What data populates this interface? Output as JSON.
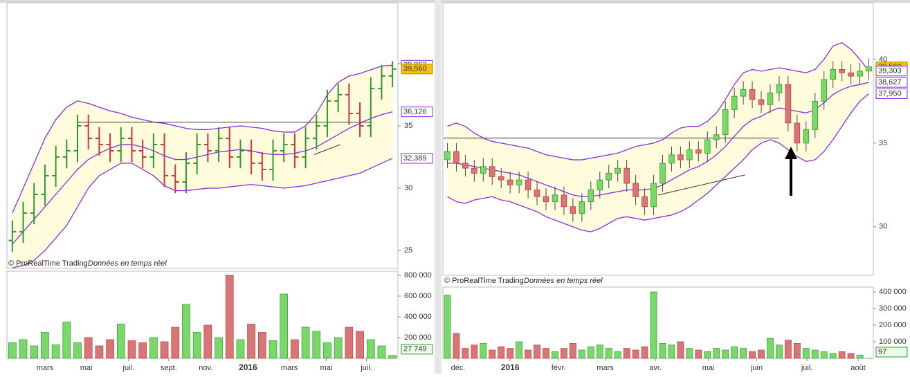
{
  "chart_data": [
    {
      "type": "ohlc",
      "xlim": [
        -0.5,
        35.5
      ],
      "xticks": [
        {
          "value": 3,
          "label": "mars"
        },
        {
          "value": 6.8,
          "label": "mai"
        },
        {
          "value": 10.7,
          "label": "juil."
        },
        {
          "value": 14.4,
          "label": "sept."
        },
        {
          "value": 17.8,
          "label": "nov."
        },
        {
          "value": 21.7,
          "label": "2016",
          "bold": true
        },
        {
          "value": 25.5,
          "label": "mars"
        },
        {
          "value": 28.9,
          "label": "mai"
        },
        {
          "value": 32.6,
          "label": "juil."
        }
      ],
      "ylim": [
        23.56,
        45.1
      ],
      "yticks": [
        25,
        30,
        35,
        40
      ],
      "open": [
        25.8,
        26.5,
        28,
        29.5,
        31,
        32.5,
        33,
        35,
        34,
        33.5,
        33,
        34,
        33,
        32.5,
        33.5,
        31,
        30.5,
        32,
        33.5,
        33,
        34,
        32.5,
        33,
        32,
        31.5,
        33,
        33.5,
        32.5,
        34,
        35,
        37,
        37.5,
        36,
        35,
        38,
        39
      ],
      "high": [
        27.4,
        28.9,
        30.4,
        31.9,
        33.4,
        33.9,
        35.9,
        35.9,
        34.9,
        34.4,
        34.9,
        34.9,
        33.9,
        34.4,
        34.4,
        31.9,
        32.9,
        34.4,
        34.4,
        34.9,
        34.9,
        33.9,
        33.9,
        32.9,
        33.9,
        34.4,
        34.4,
        34.9,
        35.9,
        37.9,
        38.4,
        38.4,
        36.9,
        38.9,
        39.9,
        40.2
      ],
      "low": [
        24.9,
        25.6,
        27.1,
        28.6,
        30.1,
        31.6,
        32.1,
        33.1,
        32.6,
        32.1,
        32.1,
        32.1,
        31.6,
        31.6,
        30.1,
        29.6,
        29.6,
        31.1,
        32.1,
        32.1,
        31.6,
        31.6,
        31.1,
        30.6,
        30.6,
        32.1,
        31.6,
        31.6,
        33.1,
        34.1,
        36.1,
        35.1,
        34.1,
        34.1,
        37.1,
        38.1
      ],
      "close": [
        26.5,
        28,
        29.5,
        31,
        32.5,
        33,
        35,
        34,
        33.5,
        33,
        34,
        33,
        32.5,
        33.5,
        31,
        30.5,
        32,
        33.5,
        33,
        34,
        32.5,
        33,
        32,
        31.5,
        33,
        33.5,
        32.5,
        34,
        35,
        37,
        37.5,
        36,
        35,
        38,
        39,
        39.56
      ],
      "bands": {
        "upper": [
          28,
          30,
          32,
          34,
          35.5,
          36.5,
          37,
          36.8,
          36.5,
          36.2,
          36,
          35.7,
          35.5,
          35.3,
          35.2,
          35,
          34.8,
          34.7,
          34.7,
          34.8,
          34.9,
          35,
          34.9,
          34.8,
          34.6,
          34.5,
          34.5,
          35,
          36,
          37.5,
          38.5,
          39,
          39.2,
          39.5,
          39.8,
          39.863
        ],
        "middle": [
          25.5,
          26.5,
          27.5,
          28.5,
          29.5,
          30.5,
          31.5,
          32.3,
          32.8,
          33.2,
          33.5,
          33.5,
          33.3,
          33.0,
          32.6,
          32.3,
          32.3,
          32.5,
          32.7,
          32.9,
          33,
          33.1,
          33.0,
          32.8,
          32.7,
          32.7,
          32.8,
          33,
          33.3,
          33.8,
          34.3,
          34.8,
          35.2,
          35.6,
          35.9,
          36.126
        ],
        "lower": [
          23.6,
          23.8,
          24.2,
          25,
          26,
          27,
          28.5,
          30,
          31,
          31.5,
          32,
          32,
          31.5,
          31,
          30.2,
          29.8,
          29.8,
          29.9,
          30,
          30,
          30.1,
          30.2,
          30.3,
          30.2,
          30.1,
          30.0,
          30.1,
          30.2,
          30.4,
          30.6,
          30.8,
          31,
          31.2,
          31.6,
          32,
          32.389
        ]
      },
      "lines": [
        {
          "x": [
            6,
            33
          ],
          "y": [
            35.3,
            35.3
          ]
        },
        {
          "x": [
            27.8,
            30.2
          ],
          "y": [
            32.7,
            33.5
          ]
        }
      ],
      "tags": [
        {
          "value": 39.863,
          "label": "39,863",
          "kind": "band"
        },
        {
          "value": 39.56,
          "label": "39,560",
          "kind": "price"
        },
        {
          "value": 36.126,
          "label": "36,126",
          "kind": "band"
        },
        {
          "value": 32.389,
          "label": "32,389",
          "kind": "band"
        }
      ],
      "volume": [
        150000,
        180000,
        120000,
        250000,
        130000,
        350000,
        150000,
        200000,
        120000,
        180000,
        330000,
        170000,
        150000,
        200000,
        160000,
        300000,
        520000,
        250000,
        320000,
        200000,
        800000,
        180000,
        330000,
        250000,
        170000,
        620000,
        180000,
        300000,
        260000,
        150000,
        200000,
        300000,
        260000,
        180000,
        120000,
        27749
      ],
      "volume_ylim": [
        0,
        840000
      ],
      "volume_yticks": [
        {
          "value": 200000,
          "label": "200 000"
        },
        {
          "value": 400000,
          "label": "400 000"
        },
        {
          "value": 600000,
          "label": "600 000"
        },
        {
          "value": 800000,
          "label": "800 000"
        }
      ],
      "volume_tag": {
        "value": 27749,
        "label": "27 749"
      },
      "watermark": "© ProRealTime Trading",
      "watermark_note": "Données en temps réel"
    },
    {
      "type": "candlestick",
      "xlim": [
        -0.5,
        47.5
      ],
      "xticks": [
        {
          "value": 1.2,
          "label": "déc."
        },
        {
          "value": 7,
          "label": "2016",
          "bold": true
        },
        {
          "value": 12.4,
          "label": "févr."
        },
        {
          "value": 17.6,
          "label": "mars"
        },
        {
          "value": 23.2,
          "label": "avr."
        },
        {
          "value": 29.1,
          "label": "mai"
        },
        {
          "value": 34.5,
          "label": "juin"
        },
        {
          "value": 40.1,
          "label": "juil."
        },
        {
          "value": 45.8,
          "label": "août"
        }
      ],
      "ylim": [
        27.1,
        43.55
      ],
      "yticks": [
        30,
        35,
        40
      ],
      "open": [
        34.0,
        34.5,
        33.8,
        33.5,
        33.2,
        33.6,
        33.0,
        32.8,
        32.5,
        32.8,
        32.2,
        31.8,
        31.5,
        31.9,
        31.2,
        30.8,
        31.5,
        32.2,
        32.8,
        33.2,
        33.5,
        32.6,
        31.8,
        31.2,
        32.6,
        33.8,
        34.3,
        34.0,
        34.6,
        34.4,
        35.2,
        35.5,
        37.0,
        37.8,
        38.2,
        37.6,
        37.3,
        38.0,
        38.5,
        36.2,
        35.0,
        35.8,
        37.5,
        38.8,
        39.4,
        39.2,
        39.0,
        39.3
      ],
      "high": [
        35.0,
        35.0,
        34.3,
        34.0,
        34.1,
        34.1,
        33.5,
        33.3,
        33.3,
        33.3,
        32.7,
        32.3,
        32.4,
        32.4,
        31.7,
        32.0,
        32.7,
        33.3,
        33.7,
        34.0,
        34.0,
        33.1,
        32.3,
        33.1,
        34.3,
        34.8,
        34.8,
        35.1,
        35.1,
        35.7,
        36.0,
        37.5,
        38.3,
        38.7,
        38.7,
        38.1,
        38.5,
        39.0,
        39.0,
        36.7,
        36.3,
        38.0,
        39.3,
        39.9,
        39.9,
        39.7,
        39.8,
        40.06
      ],
      "low": [
        33.5,
        33.3,
        33.0,
        32.7,
        32.7,
        32.5,
        32.3,
        32.0,
        32.0,
        31.7,
        31.3,
        31.0,
        31.0,
        30.7,
        30.3,
        30.3,
        31.0,
        31.7,
        32.3,
        32.7,
        32.1,
        31.3,
        30.7,
        30.7,
        32.1,
        33.3,
        33.5,
        33.5,
        33.9,
        33.9,
        34.7,
        35.0,
        36.5,
        37.3,
        37.1,
        36.8,
        36.8,
        37.5,
        35.7,
        34.5,
        34.5,
        35.3,
        37.0,
        38.3,
        38.7,
        38.5,
        38.5,
        38.8
      ],
      "close": [
        34.5,
        33.8,
        33.5,
        33.2,
        33.6,
        33.0,
        32.8,
        32.5,
        32.8,
        32.2,
        31.8,
        31.5,
        31.9,
        31.2,
        30.8,
        31.5,
        32.2,
        32.8,
        33.2,
        33.5,
        32.6,
        31.8,
        31.2,
        32.6,
        33.8,
        34.3,
        34.0,
        34.6,
        34.4,
        35.2,
        35.5,
        37.0,
        37.8,
        38.2,
        37.6,
        37.3,
        38.0,
        38.5,
        36.2,
        35.0,
        35.8,
        37.5,
        38.8,
        39.4,
        39.2,
        39.0,
        39.3,
        39.56
      ],
      "bands": {
        "upper": [
          36,
          36.2,
          36,
          35.6,
          35.3,
          35.1,
          35,
          34.9,
          34.8,
          34.7,
          34.5,
          34.3,
          34.2,
          34.1,
          34.0,
          34.0,
          34.1,
          34.2,
          34.3,
          34.4,
          34.6,
          34.8,
          34.9,
          35.0,
          35.2,
          35.6,
          35.9,
          36.0,
          36.0,
          36.3,
          36.8,
          37.6,
          38.5,
          39.2,
          39.4,
          39.3,
          39.4,
          39.5,
          39.4,
          39.3,
          39.2,
          39.4,
          40,
          40.8,
          41.0,
          40.6,
          40.0,
          39.303
        ],
        "middle": [
          33.8,
          33.8,
          33.7,
          33.6,
          33.5,
          33.4,
          33.3,
          33.2,
          33.1,
          32.9,
          32.7,
          32.5,
          32.3,
          32.1,
          31.9,
          31.8,
          31.8,
          31.9,
          32.0,
          32.1,
          32.2,
          32.2,
          32.2,
          32.3,
          32.5,
          32.8,
          33.1,
          33.4,
          33.6,
          33.9,
          34.3,
          34.8,
          35.4,
          36.0,
          36.4,
          36.6,
          36.9,
          37.1,
          37.0,
          36.9,
          36.8,
          37.0,
          37.4,
          37.9,
          38.2,
          38.4,
          38.5,
          38.627
        ],
        "lower": [
          31.8,
          31.5,
          31.4,
          31.6,
          31.7,
          31.8,
          31.6,
          31.5,
          31.3,
          31.1,
          30.9,
          30.6,
          30.4,
          30.2,
          30.0,
          29.8,
          29.7,
          29.9,
          30.2,
          30.5,
          30.6,
          30.5,
          30.4,
          30.5,
          30.6,
          30.7,
          30.9,
          31.2,
          31.6,
          32.0,
          32.5,
          33.0,
          33.5,
          34.0,
          34.6,
          35.0,
          35.2,
          35.0,
          34.6,
          34.2,
          33.9,
          34.0,
          34.5,
          35.2,
          36.0,
          36.8,
          37.5,
          37.95
        ]
      },
      "lines": [
        {
          "x": [
            -0.5,
            37
          ],
          "y": [
            35.3,
            35.3
          ]
        },
        {
          "x": [
            23.5,
            33.2
          ],
          "y": [
            31.9,
            33.1
          ]
        }
      ],
      "tags": [
        {
          "value": 39.56,
          "label": "39,560",
          "kind": "price"
        },
        {
          "value": 39.303,
          "label": "39,303",
          "kind": "band"
        },
        {
          "value": 38.627,
          "label": "38,627",
          "kind": "band"
        },
        {
          "value": 37.95,
          "label": "37,950",
          "kind": "band"
        }
      ],
      "volume": [
        380000,
        150000,
        60000,
        80000,
        90000,
        50000,
        70000,
        60000,
        100000,
        50000,
        80000,
        60000,
        40000,
        60000,
        90000,
        50000,
        70000,
        80000,
        60000,
        40000,
        60000,
        50000,
        70000,
        400000,
        90000,
        80000,
        100000,
        60000,
        50000,
        40000,
        60000,
        50000,
        70000,
        60000,
        40000,
        50000,
        120000,
        80000,
        110000,
        90000,
        60000,
        50000,
        40000,
        30000,
        40000,
        30000,
        20000,
        97
      ],
      "volume_ylim": [
        0,
        429000
      ],
      "volume_yticks": [
        {
          "value": 100000,
          "label": "100 000"
        },
        {
          "value": 200000,
          "label": "200 000"
        },
        {
          "value": 300000,
          "label": "300 000"
        },
        {
          "value": 400000,
          "label": "400 000"
        }
      ],
      "volume_tag": {
        "value": 97,
        "label": "97"
      },
      "watermark": "© ProRealTime Trading",
      "watermark_note": "Données en temps réel"
    }
  ]
}
